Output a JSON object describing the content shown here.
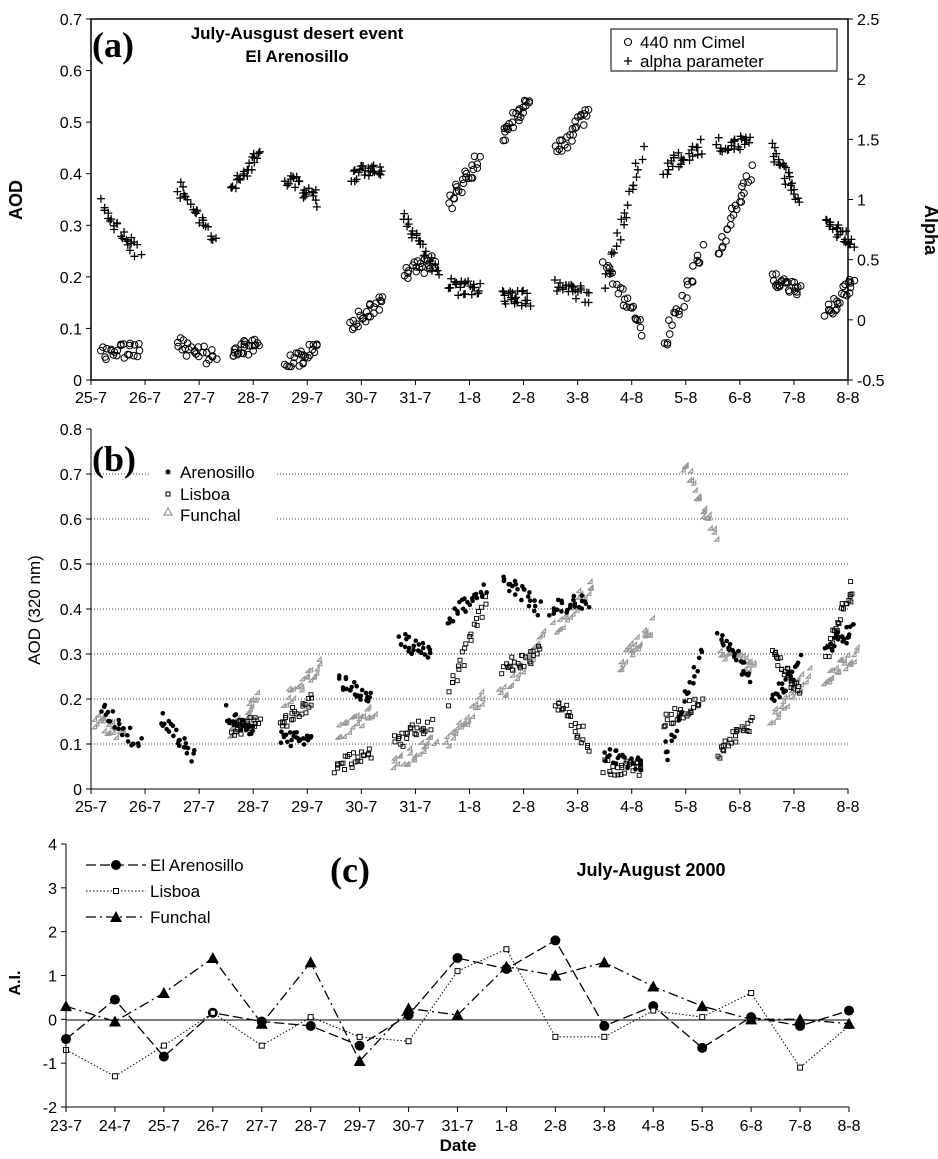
{
  "figure": {
    "panels": [
      {
        "letter": "(a)",
        "title_lines": [
          "July-Ausgust desert event",
          "El Arenosillo"
        ],
        "ylabel_left": "AOD",
        "ylabel_right": "Alpha",
        "legend": [
          "440 nm Cimel",
          "alpha parameter"
        ]
      },
      {
        "letter": "(b)",
        "ylabel": "AOD (320 nm)",
        "legend": [
          "Arenosillo",
          "Lisboa",
          "Funchal"
        ]
      },
      {
        "letter": "(c)",
        "title": "July-August 2000",
        "ylabel": "A.I.",
        "xlabel": "Date",
        "legend": [
          "El Arenosillo",
          "Lisboa",
          "Funchal"
        ]
      }
    ]
  },
  "chart_data": [
    {
      "type": "scatter",
      "panel": "a",
      "x_ticks": [
        "25-7",
        "26-7",
        "27-7",
        "28-7",
        "29-7",
        "30-7",
        "31-7",
        "1-8",
        "2-8",
        "3-8",
        "4-8",
        "5-8",
        "6-8",
        "7-8",
        "8-8"
      ],
      "xlim": [
        25,
        39
      ],
      "ylim_left": [
        0,
        0.7
      ],
      "y_ticks_left": [
        0,
        0.1,
        0.2,
        0.3,
        0.4,
        0.5,
        0.6,
        0.7
      ],
      "ylim_right": [
        -0.5,
        2.5
      ],
      "y_ticks_right": [
        -0.5,
        0,
        0.5,
        1,
        1.5,
        2,
        2.5
      ],
      "grid": false,
      "legend_position": "top-right",
      "series": [
        {
          "name": "440 nm Cimel",
          "axis": "left",
          "marker": "circle",
          "clusters": [
            {
              "x": [
                25.2,
                25.9
              ],
              "y": [
                0.05,
                0.06
              ]
            },
            {
              "x": [
                26.6,
                27.3
              ],
              "y": [
                0.07,
                0.04
              ]
            },
            {
              "x": [
                27.6,
                28.1
              ],
              "y": [
                0.05,
                0.07
              ]
            },
            {
              "x": [
                28.6,
                29.2
              ],
              "y": [
                0.03,
                0.06
              ]
            },
            {
              "x": [
                29.8,
                30.4
              ],
              "y": [
                0.1,
                0.16
              ]
            },
            {
              "x": [
                30.8,
                31.4
              ],
              "y": [
                0.21,
                0.23
              ]
            },
            {
              "x": [
                31.6,
                32.2
              ],
              "y": [
                0.34,
                0.43
              ]
            },
            {
              "x": [
                32.6,
                33.1
              ],
              "y": [
                0.47,
                0.55
              ]
            },
            {
              "x": [
                33.6,
                34.2
              ],
              "y": [
                0.44,
                0.52
              ]
            },
            {
              "x": [
                34.5,
                35.2
              ],
              "y": [
                0.22,
                0.1
              ]
            },
            {
              "x": [
                35.6,
                36.3
              ],
              "y": [
                0.07,
                0.25
              ]
            },
            {
              "x": [
                36.6,
                37.2
              ],
              "y": [
                0.25,
                0.41
              ]
            },
            {
              "x": [
                37.6,
                38.1
              ],
              "y": [
                0.2,
                0.17
              ]
            },
            {
              "x": [
                38.6,
                39.1
              ],
              "y": [
                0.13,
                0.19
              ]
            }
          ]
        },
        {
          "name": "alpha parameter",
          "axis": "right",
          "marker": "plus",
          "clusters": [
            {
              "x": [
                25.2,
                25.9
              ],
              "y": [
                0.95,
                0.55
              ]
            },
            {
              "x": [
                26.6,
                27.3
              ],
              "y": [
                1.1,
                0.65
              ]
            },
            {
              "x": [
                27.6,
                28.1
              ],
              "y": [
                1.1,
                1.4
              ]
            },
            {
              "x": [
                28.6,
                29.2
              ],
              "y": [
                1.2,
                1.0
              ]
            },
            {
              "x": [
                29.8,
                30.4
              ],
              "y": [
                1.2,
                1.25
              ]
            },
            {
              "x": [
                30.8,
                31.4
              ],
              "y": [
                0.85,
                0.4
              ]
            },
            {
              "x": [
                31.6,
                32.2
              ],
              "y": [
                0.28,
                0.24
              ]
            },
            {
              "x": [
                32.6,
                33.1
              ],
              "y": [
                0.2,
                0.18
              ]
            },
            {
              "x": [
                33.6,
                34.2
              ],
              "y": [
                0.28,
                0.2
              ]
            },
            {
              "x": [
                34.5,
                35.2
              ],
              "y": [
                0.3,
                1.4
              ]
            },
            {
              "x": [
                35.6,
                36.3
              ],
              "y": [
                1.25,
                1.45
              ]
            },
            {
              "x": [
                36.6,
                37.2
              ],
              "y": [
                1.45,
                1.47
              ]
            },
            {
              "x": [
                37.6,
                38.1
              ],
              "y": [
                1.4,
                1.0
              ]
            },
            {
              "x": [
                38.6,
                39.1
              ],
              "y": [
                0.8,
                0.65
              ]
            }
          ]
        }
      ]
    },
    {
      "type": "scatter",
      "panel": "b",
      "x_ticks": [
        "25-7",
        "26-7",
        "27-7",
        "28-7",
        "29-7",
        "30-7",
        "31-7",
        "1-8",
        "2-8",
        "3-8",
        "4-8",
        "5-8",
        "6-8",
        "7-8",
        "8-8"
      ],
      "xlim": [
        25,
        39
      ],
      "ylim": [
        0,
        0.8
      ],
      "y_ticks": [
        0,
        0.1,
        0.2,
        0.3,
        0.4,
        0.5,
        0.6,
        0.7,
        0.8
      ],
      "grid": "horizontal dotted",
      "legend_position": "top-left",
      "series": [
        {
          "name": "Arenosillo",
          "marker": "dot",
          "clusters": [
            {
              "x": [
                25.2,
                25.9
              ],
              "y": [
                0.18,
                0.1
              ]
            },
            {
              "x": [
                26.3,
                26.9
              ],
              "y": [
                0.16,
                0.07
              ]
            },
            {
              "x": [
                27.5,
                28.0
              ],
              "y": [
                0.17,
                0.12
              ]
            },
            {
              "x": [
                28.5,
                29.1
              ],
              "y": [
                0.12,
                0.1
              ]
            },
            {
              "x": [
                29.6,
                30.2
              ],
              "y": [
                0.24,
                0.2
              ]
            },
            {
              "x": [
                30.7,
                31.3
              ],
              "y": [
                0.33,
                0.3
              ]
            },
            {
              "x": [
                31.6,
                32.3
              ],
              "y": [
                0.38,
                0.45
              ]
            },
            {
              "x": [
                32.6,
                33.3
              ],
              "y": [
                0.47,
                0.4
              ]
            },
            {
              "x": [
                33.5,
                34.2
              ],
              "y": [
                0.4,
                0.42
              ]
            },
            {
              "x": [
                34.5,
                35.2
              ],
              "y": [
                0.08,
                0.05
              ]
            },
            {
              "x": [
                35.6,
                36.3
              ],
              "y": [
                0.07,
                0.3
              ]
            },
            {
              "x": [
                36.6,
                37.2
              ],
              "y": [
                0.35,
                0.25
              ]
            },
            {
              "x": [
                37.6,
                38.1
              ],
              "y": [
                0.2,
                0.28
              ]
            },
            {
              "x": [
                38.6,
                39.1
              ],
              "y": [
                0.32,
                0.35
              ]
            }
          ]
        },
        {
          "name": "Lisboa",
          "marker": "square",
          "clusters": [
            {
              "x": [
                27.6,
                28.1
              ],
              "y": [
                0.13,
                0.15
              ]
            },
            {
              "x": [
                28.5,
                29.1
              ],
              "y": [
                0.14,
                0.2
              ]
            },
            {
              "x": [
                29.5,
                30.2
              ],
              "y": [
                0.05,
                0.08
              ]
            },
            {
              "x": [
                30.6,
                31.3
              ],
              "y": [
                0.1,
                0.15
              ]
            },
            {
              "x": [
                31.6,
                32.3
              ],
              "y": [
                0.2,
                0.42
              ]
            },
            {
              "x": [
                32.6,
                33.3
              ],
              "y": [
                0.27,
                0.3
              ]
            },
            {
              "x": [
                33.6,
                34.2
              ],
              "y": [
                0.2,
                0.1
              ]
            },
            {
              "x": [
                34.5,
                35.2
              ],
              "y": [
                0.05,
                0.04
              ]
            },
            {
              "x": [
                35.6,
                36.3
              ],
              "y": [
                0.15,
                0.2
              ]
            },
            {
              "x": [
                36.6,
                37.2
              ],
              "y": [
                0.08,
                0.15
              ]
            },
            {
              "x": [
                37.6,
                38.1
              ],
              "y": [
                0.3,
                0.22
              ]
            },
            {
              "x": [
                38.6,
                39.1
              ],
              "y": [
                0.3,
                0.45
              ]
            }
          ]
        },
        {
          "name": "Funchal",
          "marker": "triangle",
          "clusters": [
            {
              "x": [
                25.1,
                25.6
              ],
              "y": [
                0.15,
                0.12
              ]
            },
            {
              "x": [
                27.6,
                28.1
              ],
              "y": [
                0.12,
                0.2
              ]
            },
            {
              "x": [
                28.6,
                29.3
              ],
              "y": [
                0.19,
                0.27
              ]
            },
            {
              "x": [
                29.6,
                30.3
              ],
              "y": [
                0.12,
                0.17
              ]
            },
            {
              "x": [
                30.6,
                31.4
              ],
              "y": [
                0.05,
                0.1
              ]
            },
            {
              "x": [
                31.6,
                32.3
              ],
              "y": [
                0.1,
                0.2
              ]
            },
            {
              "x": [
                32.6,
                33.4
              ],
              "y": [
                0.2,
                0.33
              ]
            },
            {
              "x": [
                33.6,
                34.3
              ],
              "y": [
                0.35,
                0.45
              ]
            },
            {
              "x": [
                34.8,
                35.4
              ],
              "y": [
                0.27,
                0.36
              ]
            },
            {
              "x": [
                36.0,
                36.6
              ],
              "y": [
                0.72,
                0.56
              ]
            },
            {
              "x": [
                36.7,
                37.3
              ],
              "y": [
                0.3,
                0.27
              ]
            },
            {
              "x": [
                37.6,
                38.3
              ],
              "y": [
                0.15,
                0.25
              ]
            },
            {
              "x": [
                38.6,
                39.2
              ],
              "y": [
                0.24,
                0.3
              ]
            }
          ]
        }
      ]
    },
    {
      "type": "line",
      "panel": "c",
      "title": "July-August 2000",
      "xlabel": "Date",
      "ylabel": "A.I.",
      "categories": [
        "23-7",
        "24-7",
        "25-7",
        "26-7",
        "27-7",
        "28-7",
        "29-7",
        "30-7",
        "31-7",
        "1-8",
        "2-8",
        "3-8",
        "4-8",
        "5-8",
        "6-8",
        "7-8",
        "8-8"
      ],
      "ylim": [
        -2,
        4
      ],
      "y_ticks": [
        -2,
        -1,
        0,
        1,
        2,
        3,
        4
      ],
      "grid": false,
      "legend_position": "top-left",
      "series": [
        {
          "name": "El Arenosillo",
          "marker": "circle",
          "values": [
            -0.45,
            0.45,
            -0.85,
            0.15,
            -0.05,
            -0.15,
            -0.6,
            0.1,
            1.4,
            1.15,
            1.8,
            -0.15,
            0.3,
            -0.65,
            0.05,
            -0.15,
            0.2
          ]
        },
        {
          "name": "Lisboa",
          "marker": "square",
          "values": [
            -0.7,
            -1.3,
            -0.6,
            0.15,
            -0.6,
            0.05,
            -0.4,
            -0.5,
            1.1,
            1.6,
            -0.4,
            -0.4,
            0.2,
            0.05,
            0.6,
            -1.1,
            -0.15
          ]
        },
        {
          "name": "Funchal",
          "marker": "triangle",
          "values": [
            0.3,
            -0.05,
            0.6,
            1.4,
            -0.1,
            1.3,
            -0.95,
            0.25,
            0.1,
            1.2,
            1.0,
            1.3,
            0.75,
            0.3,
            0.0,
            0.0,
            -0.1
          ]
        }
      ]
    }
  ]
}
